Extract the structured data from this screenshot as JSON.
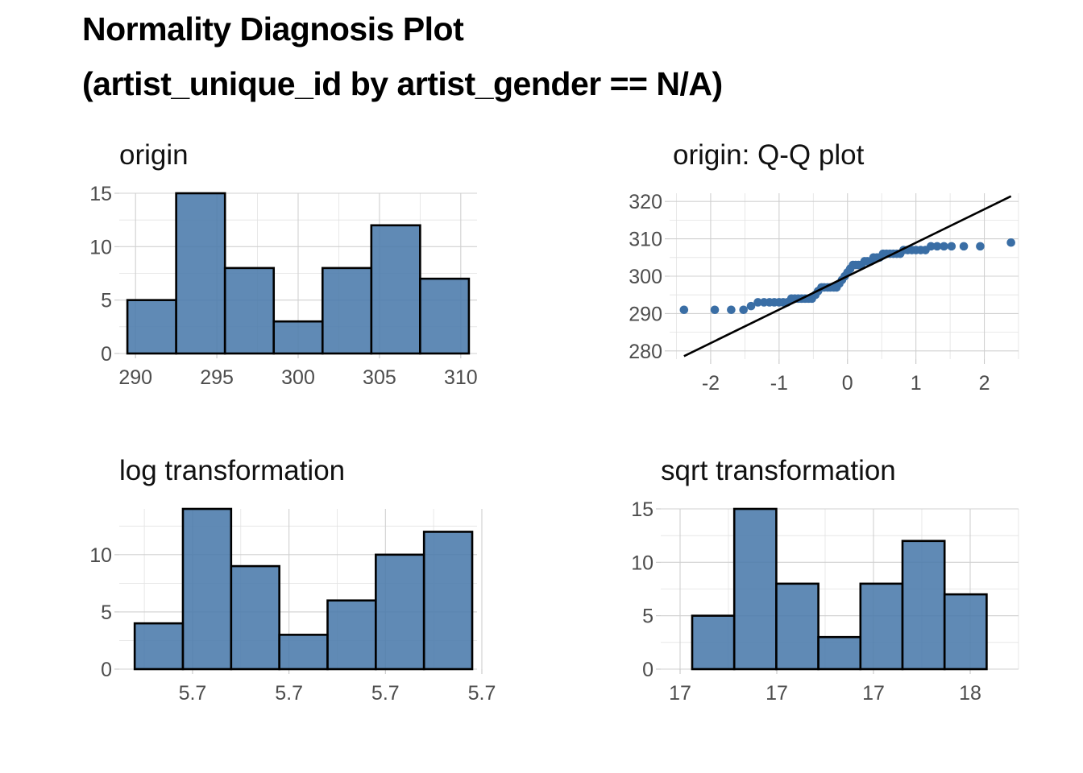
{
  "title": {
    "line1": "Normality Diagnosis Plot",
    "line2": "(artist_unique_id by artist_gender == N/A)"
  },
  "colors": {
    "fill": "#4a7aab",
    "point": "#3a6ea5",
    "outline": "#000000",
    "line": "#000000"
  },
  "chart_data": [
    {
      "type": "bar",
      "title": "origin",
      "xlabel": "",
      "ylabel": "",
      "bin_edges": [
        289.5,
        292.5,
        295.5,
        298.5,
        301.5,
        304.5,
        307.5,
        310.5
      ],
      "values": [
        5,
        15,
        8,
        3,
        8,
        12,
        7
      ],
      "xlim": [
        289,
        311
      ],
      "ylim": [
        0,
        15
      ],
      "x_ticks": [
        290,
        295,
        300,
        305,
        310
      ],
      "x_tick_labels": [
        "290",
        "295",
        "300",
        "305",
        "310"
      ],
      "y_ticks": [
        0,
        5,
        10,
        15
      ],
      "y_tick_labels": [
        "0",
        "5",
        "10",
        "15"
      ],
      "grid": true
    },
    {
      "type": "scatter",
      "title": "origin: Q-Q plot",
      "xlabel": "",
      "ylabel": "",
      "x": [
        -2.39,
        -1.94,
        -1.7,
        -1.52,
        -1.41,
        -1.31,
        -1.22,
        -1.14,
        -1.07,
        -1.0,
        -0.94,
        -0.88,
        -0.82,
        -0.77,
        -0.72,
        -0.67,
        -0.62,
        -0.57,
        -0.52,
        -0.47,
        -0.43,
        -0.38,
        -0.34,
        -0.29,
        -0.25,
        -0.2,
        -0.16,
        -0.12,
        -0.08,
        -0.04,
        0.0,
        0.04,
        0.08,
        0.12,
        0.16,
        0.2,
        0.25,
        0.29,
        0.34,
        0.38,
        0.43,
        0.47,
        0.52,
        0.57,
        0.62,
        0.67,
        0.72,
        0.77,
        0.82,
        0.88,
        0.94,
        1.0,
        1.07,
        1.14,
        1.22,
        1.31,
        1.41,
        1.52,
        1.7,
        1.94,
        2.39
      ],
      "y": [
        291,
        291,
        291,
        291,
        292,
        293,
        293,
        293,
        293,
        293,
        293,
        293,
        294,
        294,
        294,
        294,
        294,
        294,
        294,
        295,
        296,
        297,
        297,
        297,
        297,
        297,
        297,
        298,
        299,
        300,
        301,
        302,
        303,
        303,
        303,
        303,
        304,
        304,
        304,
        305,
        305,
        305,
        306,
        306,
        306,
        306,
        306,
        306,
        307,
        307,
        307,
        307,
        307,
        307,
        308,
        308,
        308,
        308,
        308,
        308,
        309
      ],
      "reference_line": {
        "x": [
          -2.39,
          2.39
        ],
        "y": [
          278.6,
          321.4
        ]
      },
      "xlim": [
        -2.6,
        2.5
      ],
      "ylim": [
        277.8,
        322.2
      ],
      "x_ticks": [
        -2,
        -1,
        0,
        1,
        2
      ],
      "x_tick_labels": [
        "-2",
        "-1",
        "0",
        "1",
        "2"
      ],
      "y_ticks": [
        280,
        290,
        300,
        310,
        320
      ],
      "y_tick_labels": [
        "280",
        "290",
        "300",
        "310",
        "320"
      ],
      "grid": true
    },
    {
      "type": "bar",
      "title": "log transformation",
      "xlabel": "",
      "ylabel": "",
      "bin_edges": [
        5.668,
        5.678,
        5.688,
        5.698,
        5.708,
        5.718,
        5.728,
        5.738
      ],
      "values": [
        4,
        14,
        9,
        3,
        6,
        10,
        12
      ],
      "xlim": [
        5.6648,
        5.739
      ],
      "ylim": [
        0,
        14
      ],
      "x_ticks": [
        5.68,
        5.7,
        5.72,
        5.74
      ],
      "x_tick_labels": [
        "5.7",
        "5.7",
        "5.7",
        "5.7"
      ],
      "y_ticks": [
        0,
        5,
        10
      ],
      "y_tick_labels": [
        "0",
        "5",
        "10"
      ],
      "grid": true
    },
    {
      "type": "bar",
      "title": "sqrt transformation",
      "xlabel": "",
      "ylabel": "",
      "bin_edges": [
        17.025,
        17.112,
        17.199,
        17.286,
        17.373,
        17.46,
        17.547,
        17.634
      ],
      "values": [
        5,
        15,
        8,
        3,
        8,
        12,
        7
      ],
      "xlim": [
        16.96,
        17.7
      ],
      "ylim": [
        0,
        15
      ],
      "x_ticks": [
        17.0,
        17.2,
        17.4,
        17.6
      ],
      "x_tick_labels": [
        "17",
        "17",
        "17",
        "18"
      ],
      "y_ticks": [
        0,
        5,
        10,
        15
      ],
      "y_tick_labels": [
        "0",
        "5",
        "10",
        "15"
      ],
      "grid": true
    }
  ]
}
